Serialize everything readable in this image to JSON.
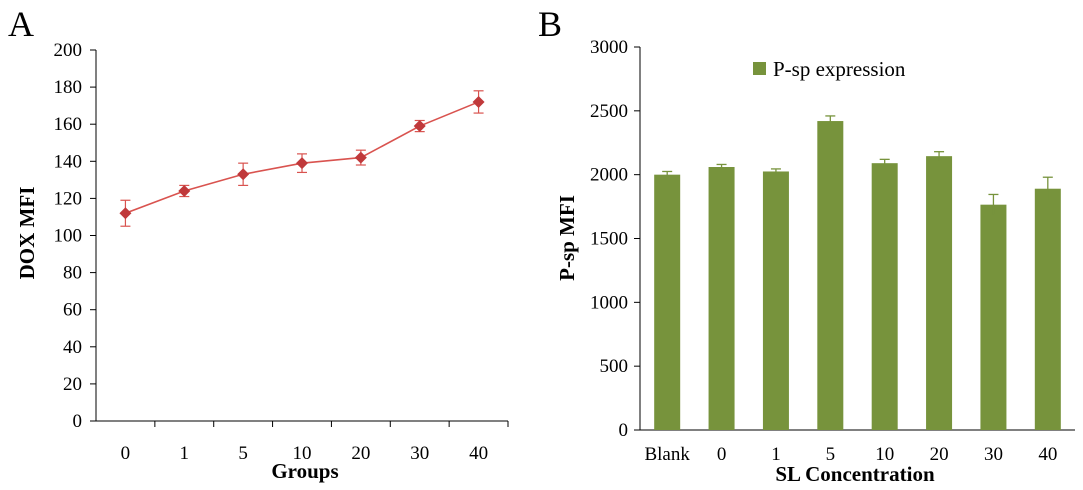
{
  "figure": {
    "panel_a_label": "A",
    "panel_b_label": "B"
  },
  "colors": {
    "line": "#d9534f",
    "marker": "#c0393b",
    "bar": "#77933c",
    "axis": "#000000"
  },
  "chart_data": [
    {
      "type": "line",
      "panel": "A",
      "title": "",
      "xlabel": "Groups",
      "ylabel": "DOX MFI",
      "categories": [
        "0",
        "1",
        "5",
        "10",
        "20",
        "30",
        "40"
      ],
      "values": [
        112,
        124,
        133,
        139,
        142,
        159,
        172
      ],
      "errors": [
        7,
        3,
        6,
        5,
        4,
        3,
        6
      ],
      "ylim": [
        0,
        200
      ],
      "yticks": [
        0,
        20,
        40,
        60,
        80,
        100,
        120,
        140,
        160,
        180,
        200
      ],
      "marker": "diamond",
      "grid": false
    },
    {
      "type": "bar",
      "panel": "B",
      "title": "",
      "xlabel": "SL Concentration",
      "ylabel": "P-sp MFI",
      "categories": [
        "Blank",
        "0",
        "1",
        "5",
        "10",
        "20",
        "30",
        "40"
      ],
      "series": [
        {
          "name": "P-sp expression",
          "values": [
            2000,
            2060,
            2025,
            2420,
            2090,
            2145,
            1765,
            1890
          ],
          "errors": [
            25,
            20,
            20,
            40,
            30,
            35,
            80,
            90
          ]
        }
      ],
      "ylim": [
        0,
        3000
      ],
      "yticks": [
        0,
        500,
        1000,
        1500,
        2000,
        2500,
        3000
      ],
      "legend": "top-center",
      "grid": false
    }
  ]
}
